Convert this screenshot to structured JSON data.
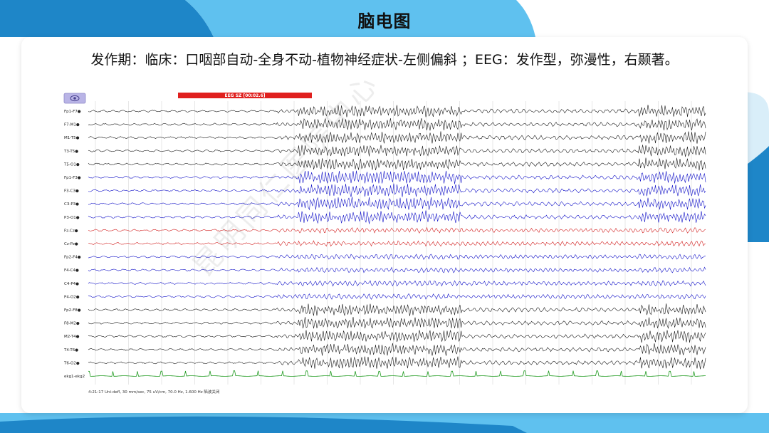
{
  "slide": {
    "title": "脑电图",
    "caption": "发作期：临床：口咽部自动-全身不动-植物神经症状-左侧偏斜 ；EEG：发作型，弥漫性，右颞著。",
    "watermark": "昆明同仁医院中心"
  },
  "eeg": {
    "event_marker": "EEG SZ [00:02.6]",
    "status_text": "4:21:17 Uni-defl, 30 mm/sec, 75 uV/cm, 70.0 Hz, 1.600 Hz 陷波关闭",
    "toolbar_icon": "eye-icon",
    "channels": [
      {
        "label": "Fp1-F7",
        "color": "#1a1a1a",
        "group": "left-temporal"
      },
      {
        "label": "F7-M1",
        "color": "#1a1a1a",
        "group": "left-temporal"
      },
      {
        "label": "M1-T5",
        "color": "#1a1a1a",
        "group": "left-temporal"
      },
      {
        "label": "T3-T5",
        "color": "#1a1a1a",
        "group": "left-temporal"
      },
      {
        "label": "T5-O1",
        "color": "#1a1a1a",
        "group": "left-temporal"
      },
      {
        "label": "Fp1-F3",
        "color": "#1414c8",
        "group": "left-parasagittal"
      },
      {
        "label": "F3-C3",
        "color": "#1414c8",
        "group": "left-parasagittal"
      },
      {
        "label": "C3-P3",
        "color": "#1414c8",
        "group": "left-parasagittal"
      },
      {
        "label": "P3-O1",
        "color": "#1414c8",
        "group": "left-parasagittal"
      },
      {
        "label": "Fz-Cz",
        "color": "#d21e1e",
        "group": "midline"
      },
      {
        "label": "Cz-Pz",
        "color": "#d21e1e",
        "group": "midline"
      },
      {
        "label": "Fp2-F4",
        "color": "#1414c8",
        "group": "right-parasagittal"
      },
      {
        "label": "F4-C4",
        "color": "#1414c8",
        "group": "right-parasagittal"
      },
      {
        "label": "C4-P4",
        "color": "#1414c8",
        "group": "right-parasagittal"
      },
      {
        "label": "P4-O2",
        "color": "#1414c8",
        "group": "right-parasagittal"
      },
      {
        "label": "Fp2-F8",
        "color": "#1a1a1a",
        "group": "right-temporal"
      },
      {
        "label": "F8-M2",
        "color": "#1a1a1a",
        "group": "right-temporal"
      },
      {
        "label": "M2-T4",
        "color": "#1a1a1a",
        "group": "right-temporal"
      },
      {
        "label": "T4-T6",
        "color": "#1a1a1a",
        "group": "right-temporal"
      },
      {
        "label": "T6-O2",
        "color": "#1a1a1a",
        "group": "right-temporal"
      },
      {
        "label": "ekg1-ekg2",
        "color": "#1f9a1f",
        "group": "ekg"
      }
    ]
  },
  "colors": {
    "bg_dark_blue": "#1e86c8",
    "bg_light_blue": "#5fc1ef",
    "event_red": "#e0201e",
    "grid": "#cfcfcf",
    "icon_button": "#b9b4e6"
  }
}
